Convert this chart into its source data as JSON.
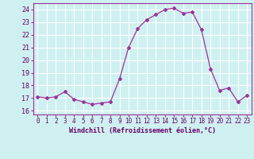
{
  "x": [
    0,
    1,
    2,
    3,
    4,
    5,
    6,
    7,
    8,
    9,
    10,
    11,
    12,
    13,
    14,
    15,
    16,
    17,
    18,
    19,
    20,
    21,
    22,
    23
  ],
  "y": [
    17.1,
    17.0,
    17.1,
    17.5,
    16.9,
    16.7,
    16.5,
    16.6,
    16.7,
    18.5,
    21.0,
    22.5,
    23.2,
    23.6,
    24.0,
    24.1,
    23.7,
    23.8,
    22.4,
    19.3,
    17.6,
    17.8,
    16.7,
    17.2
  ],
  "line_color": "#993399",
  "marker": "D",
  "marker_size": 2,
  "bg_color": "#cff0f0",
  "grid_color": "#ffffff",
  "xlabel": "Windchill (Refroidissement éolien,°C)",
  "xlabel_color": "#660066",
  "tick_color": "#660066",
  "ylim": [
    15.7,
    24.5
  ],
  "yticks": [
    16,
    17,
    18,
    19,
    20,
    21,
    22,
    23,
    24
  ],
  "xticks": [
    0,
    1,
    2,
    3,
    4,
    5,
    6,
    7,
    8,
    9,
    10,
    11,
    12,
    13,
    14,
    15,
    16,
    17,
    18,
    19,
    20,
    21,
    22,
    23
  ],
  "spine_color": "#993399",
  "figsize": [
    3.2,
    2.0
  ],
  "dpi": 100
}
